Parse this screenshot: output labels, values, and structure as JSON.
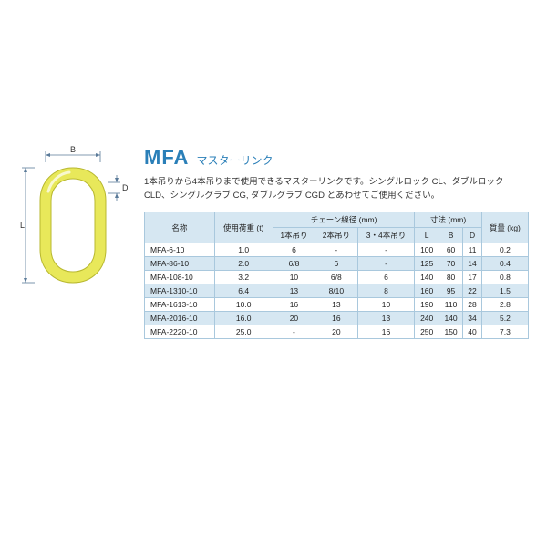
{
  "product": {
    "title": "MFA",
    "subtitle": "マスターリンク",
    "description": "1本吊りから4本吊りまで使用できるマスターリンクです。シングルロック CL、ダブルロック CLD、シングルグラブ CG, ダブルグラブ CGD とあわせてご使用ください。"
  },
  "diagram": {
    "labels": {
      "B": "B",
      "D": "D",
      "L": "L"
    },
    "ring_color": "#e8e85a",
    "ring_stroke": "#b8b830",
    "dim_color": "#5a7a99"
  },
  "table": {
    "headers": {
      "name": "名称",
      "load": "使用荷重\n(t)",
      "chain_group": "チェーン線径 (mm)",
      "chain1": "1本吊り",
      "chain2": "2本吊り",
      "chain34": "3・4本吊り",
      "dim_group": "寸法 (mm)",
      "L": "L",
      "B": "B",
      "D": "D",
      "weight": "質量\n(kg)"
    },
    "rows": [
      {
        "name": "MFA-6-10",
        "load": "1.0",
        "c1": "6",
        "c2": "-",
        "c34": "-",
        "L": "100",
        "B": "60",
        "D": "11",
        "wt": "0.2",
        "hl": false
      },
      {
        "name": "MFA-86-10",
        "load": "2.0",
        "c1": "6/8",
        "c2": "6",
        "c34": "-",
        "L": "125",
        "B": "70",
        "D": "14",
        "wt": "0.4",
        "hl": true
      },
      {
        "name": "MFA-108-10",
        "load": "3.2",
        "c1": "10",
        "c2": "6/8",
        "c34": "6",
        "L": "140",
        "B": "80",
        "D": "17",
        "wt": "0.8",
        "hl": false
      },
      {
        "name": "MFA-1310-10",
        "load": "6.4",
        "c1": "13",
        "c2": "8/10",
        "c34": "8",
        "L": "160",
        "B": "95",
        "D": "22",
        "wt": "1.5",
        "hl": true
      },
      {
        "name": "MFA-1613-10",
        "load": "10.0",
        "c1": "16",
        "c2": "13",
        "c34": "10",
        "L": "190",
        "B": "110",
        "D": "28",
        "wt": "2.8",
        "hl": false
      },
      {
        "name": "MFA-2016-10",
        "load": "16.0",
        "c1": "20",
        "c2": "16",
        "c34": "13",
        "L": "240",
        "B": "140",
        "D": "34",
        "wt": "5.2",
        "hl": true
      },
      {
        "name": "MFA-2220-10",
        "load": "25.0",
        "c1": "-",
        "c2": "20",
        "c34": "16",
        "L": "250",
        "B": "150",
        "D": "40",
        "wt": "7.3",
        "hl": false
      }
    ],
    "header_bg": "#d6e7f2",
    "border_color": "#a9c8dd"
  }
}
